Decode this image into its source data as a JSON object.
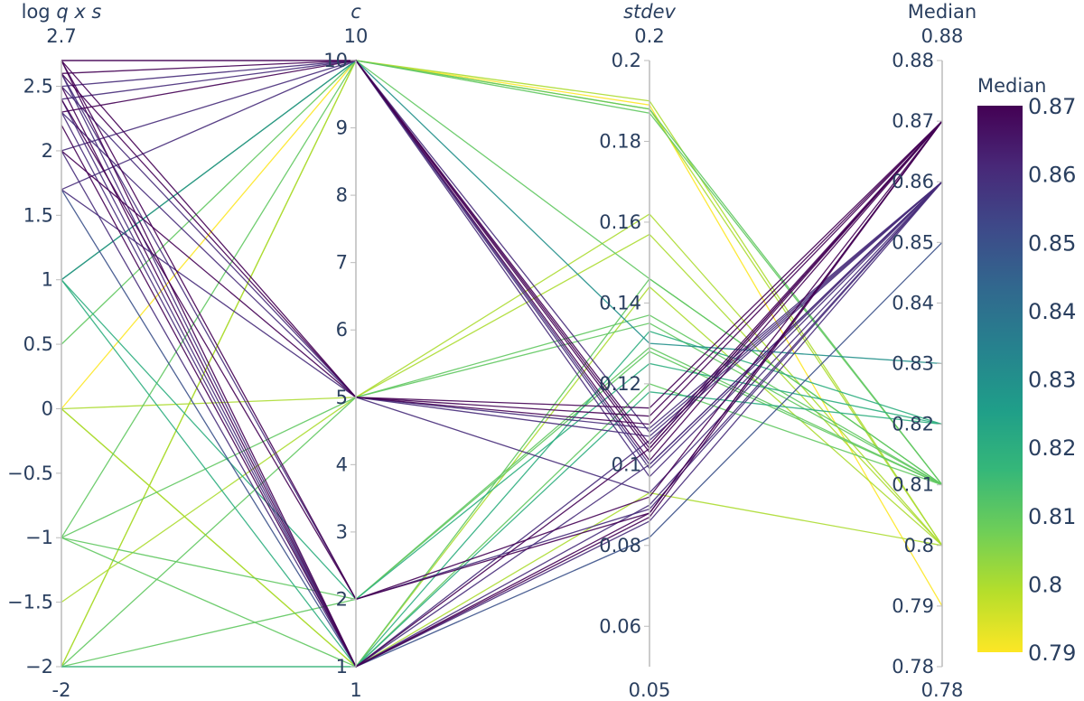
{
  "chart_data": {
    "type": "parallel_coordinates",
    "axes": [
      {
        "label_pre": "log ",
        "label_italic": "q x s",
        "range": [
          -2,
          2.7
        ],
        "range_labels": [
          "2.7",
          "-2"
        ],
        "ticks": [
          2.5,
          2,
          1.5,
          1,
          0.5,
          0,
          -0.5,
          -1,
          -1.5,
          -2
        ],
        "tick_labels": [
          "2.5",
          "2",
          "1.5",
          "1",
          "0.5",
          "0",
          "−0.5",
          "−1",
          "−1.5",
          "−2"
        ]
      },
      {
        "label_pre": "",
        "label_italic": "c",
        "range": [
          1,
          10
        ],
        "range_labels": [
          "10",
          "1"
        ],
        "ticks": [
          10,
          9,
          8,
          7,
          6,
          5,
          4,
          3,
          2,
          1
        ],
        "tick_labels": [
          "10",
          "9",
          "8",
          "7",
          "6",
          "5",
          "4",
          "3",
          "2",
          "1"
        ]
      },
      {
        "label_pre": "",
        "label_italic": "stdev",
        "range": [
          0.05,
          0.2
        ],
        "range_labels": [
          "0.2",
          "0.05"
        ],
        "ticks": [
          0.2,
          0.18,
          0.16,
          0.14,
          0.12,
          0.1,
          0.08,
          0.06
        ],
        "tick_labels": [
          "0.2",
          "0.18",
          "0.16",
          "0.14",
          "0.12",
          "0.1",
          "0.08",
          "0.06"
        ]
      },
      {
        "label_pre": "Median",
        "label_italic": "",
        "range": [
          0.78,
          0.88
        ],
        "range_labels": [
          "0.88",
          "0.78"
        ],
        "ticks": [
          0.88,
          0.87,
          0.86,
          0.85,
          0.84,
          0.83,
          0.82,
          0.81,
          0.8,
          0.79,
          0.78
        ],
        "tick_labels": [
          "0.88",
          "0.87",
          "0.86",
          "0.85",
          "0.84",
          "0.83",
          "0.82",
          "0.81",
          "0.8",
          "0.79",
          "0.78"
        ]
      }
    ],
    "colorbar": {
      "title": "Median",
      "range": [
        0.79,
        0.87
      ],
      "ticks": [
        0.87,
        0.86,
        0.85,
        0.84,
        0.83,
        0.82,
        0.81,
        0.8,
        0.79
      ],
      "tick_labels": [
        "0.87",
        "0.86",
        "0.85",
        "0.84",
        "0.83",
        "0.82",
        "0.81",
        "0.8",
        "0.79"
      ],
      "colorscale": [
        "#fde725",
        "#b5de2b",
        "#6ece58",
        "#35b779",
        "#1f9e89",
        "#26828e",
        "#31688e",
        "#3e4989",
        "#482878",
        "#440154"
      ]
    },
    "lines": [
      [
        2.7,
        10,
        0.101,
        0.87
      ],
      [
        2.7,
        10,
        0.103,
        0.87
      ],
      [
        2.6,
        10,
        0.105,
        0.87
      ],
      [
        2.5,
        10,
        0.099,
        0.86
      ],
      [
        2.4,
        10,
        0.108,
        0.86
      ],
      [
        2.3,
        10,
        0.104,
        0.87
      ],
      [
        2.0,
        10,
        0.097,
        0.86
      ],
      [
        1.7,
        10,
        0.1,
        0.86
      ],
      [
        1.0,
        10,
        0.13,
        0.83
      ],
      [
        2.7,
        5,
        0.11,
        0.87
      ],
      [
        2.6,
        5,
        0.112,
        0.87
      ],
      [
        2.5,
        5,
        0.107,
        0.86
      ],
      [
        2.3,
        5,
        0.109,
        0.86
      ],
      [
        2.0,
        5,
        0.114,
        0.87
      ],
      [
        1.7,
        5,
        0.093,
        0.86
      ],
      [
        2.7,
        2,
        0.088,
        0.87
      ],
      [
        2.6,
        2,
        0.089,
        0.86
      ],
      [
        2.4,
        2,
        0.092,
        0.87
      ],
      [
        2.7,
        1,
        0.088,
        0.87
      ],
      [
        2.6,
        1,
        0.1,
        0.86
      ],
      [
        2.5,
        1,
        0.104,
        0.87
      ],
      [
        2.4,
        1,
        0.106,
        0.86
      ],
      [
        2.3,
        1,
        0.09,
        0.86
      ],
      [
        2.2,
        1,
        0.087,
        0.87
      ],
      [
        2.0,
        1,
        0.086,
        0.86
      ],
      [
        1.7,
        1,
        0.082,
        0.85
      ],
      [
        1.0,
        2,
        0.125,
        0.82
      ],
      [
        1.0,
        1,
        0.118,
        0.82
      ],
      [
        1.0,
        10,
        0.146,
        0.81
      ],
      [
        0,
        5,
        0.157,
        0.8
      ],
      [
        0,
        10,
        0.189,
        0.79
      ],
      [
        0,
        1,
        0.144,
        0.8
      ],
      [
        -1,
        5,
        0.135,
        0.81
      ],
      [
        -1,
        10,
        0.187,
        0.81
      ],
      [
        -1,
        2,
        0.128,
        0.81
      ],
      [
        -1,
        1,
        0.146,
        0.81
      ],
      [
        -1.5,
        5,
        0.162,
        0.8
      ],
      [
        -2,
        10,
        0.188,
        0.8
      ],
      [
        -2,
        5,
        0.137,
        0.81
      ],
      [
        -2,
        2,
        0.129,
        0.81
      ],
      [
        -2,
        1,
        0.133,
        0.82
      ],
      [
        -2,
        10,
        0.19,
        0.8
      ],
      [
        -2,
        1,
        0.12,
        0.81
      ],
      [
        0.5,
        10,
        0.188,
        0.81
      ],
      [
        0,
        1,
        0.093,
        0.8
      ]
    ]
  }
}
